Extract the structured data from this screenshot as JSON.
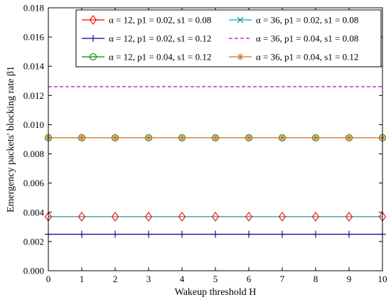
{
  "chart_data": {
    "type": "line",
    "xlabel": "Wakeup threshold H",
    "ylabel": "Emergency packets' blocking rate β1",
    "xlim": [
      0,
      10
    ],
    "ylim": [
      0,
      0.018
    ],
    "x": [
      0,
      1,
      2,
      3,
      4,
      5,
      6,
      7,
      8,
      9,
      10
    ],
    "xticks": [
      "0",
      "1",
      "2",
      "3",
      "4",
      "5",
      "6",
      "7",
      "8",
      "9",
      "10"
    ],
    "yticks": [
      "0.000",
      "0.002",
      "0.004",
      "0.006",
      "0.008",
      "0.010",
      "0.012",
      "0.014",
      "0.016",
      "0.018"
    ],
    "grid": false,
    "legend_position": "top-right",
    "series": [
      {
        "name": "α = 12, p1 = 0.02, s1 = 0.08",
        "values": [
          0.0037,
          0.0037,
          0.0037,
          0.0037,
          0.0037,
          0.0037,
          0.0037,
          0.0037,
          0.0037,
          0.0037,
          0.0037
        ],
        "color": "#ff0000",
        "marker": "diamond",
        "dash": "solid"
      },
      {
        "name": "α = 36, p1 = 0.02, s1 = 0.08",
        "values": [
          0.0037,
          0.0037,
          0.0037,
          0.0037,
          0.0037,
          0.0037,
          0.0037,
          0.0037,
          0.0037,
          0.0037,
          0.0037
        ],
        "color": "#1a9e9e",
        "marker": "none",
        "dash": "solid"
      },
      {
        "name": "α = 12, p1 = 0.02, s1 = 0.12",
        "values": [
          0.0025,
          0.0025,
          0.0025,
          0.0025,
          0.0025,
          0.0025,
          0.0025,
          0.0025,
          0.0025,
          0.0025,
          0.0025
        ],
        "color": "#00008b",
        "marker": "plus",
        "dash": "solid"
      },
      {
        "name": "α = 36, p1 = 0.04, s1 = 0.08",
        "values": [
          0.0126,
          0.0126,
          0.0126,
          0.0126,
          0.0126,
          0.0126,
          0.0126,
          0.0126,
          0.0126,
          0.0126,
          0.0126
        ],
        "color": "#c000c0",
        "marker": "none",
        "dash": "dashed"
      },
      {
        "name": "α = 12, p1 = 0.04, s1 = 0.12",
        "values": [
          0.0091,
          0.0091,
          0.0091,
          0.0091,
          0.0091,
          0.0091,
          0.0091,
          0.0091,
          0.0091,
          0.0091,
          0.0091
        ],
        "color": "#008000",
        "marker": "circle",
        "dash": "solid"
      },
      {
        "name": "α = 36, p1 = 0.04, s1 = 0.12",
        "values": [
          0.0091,
          0.0091,
          0.0091,
          0.0091,
          0.0091,
          0.0091,
          0.0091,
          0.0091,
          0.0091,
          0.0091,
          0.0091
        ],
        "color": "#d2691e",
        "marker": "asterisk",
        "dash": "solid"
      }
    ]
  }
}
